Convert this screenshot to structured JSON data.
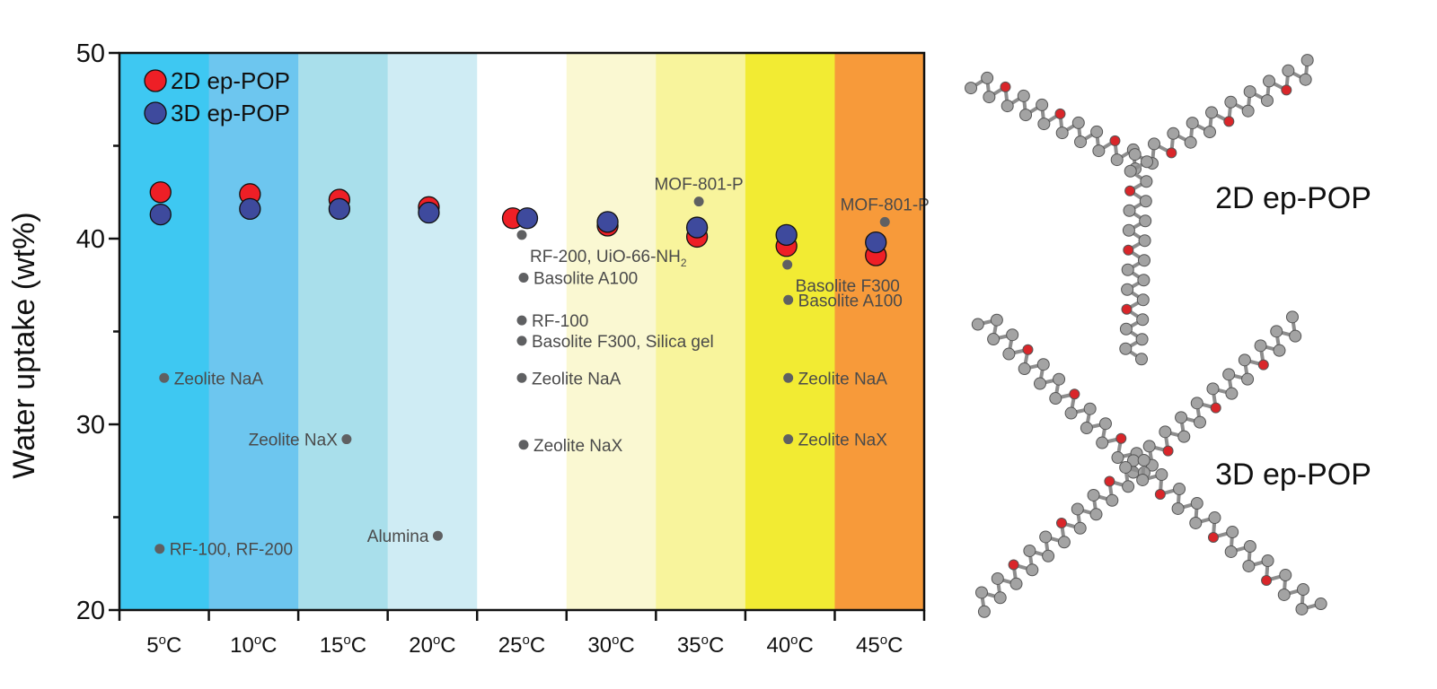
{
  "chart_data": {
    "type": "scatter",
    "ylabel": "Water uptake (wt%)",
    "ylim": [
      20,
      50
    ],
    "yticks": [
      20,
      30,
      40,
      50
    ],
    "categories": [
      "5",
      "10",
      "15",
      "20",
      "25",
      "30",
      "35",
      "40",
      "45"
    ],
    "category_unit": "oC",
    "band_colors": [
      "#3ec8f2",
      "#6dc6ef",
      "#a9dfeb",
      "#cfecf4",
      "#ffffff",
      "#faf8d2",
      "#f8f49c",
      "#f2eb33",
      "#f79a3a"
    ],
    "legend_position": "top-left",
    "grid": false,
    "series": [
      {
        "name": "2D ep-POP",
        "color": "#ee1f26",
        "values": [
          42.5,
          42.4,
          42.1,
          41.7,
          41.1,
          40.7,
          40.1,
          39.6,
          39.1
        ]
      },
      {
        "name": "3D ep-POP",
        "color": "#3e4a9d",
        "values": [
          41.3,
          41.6,
          41.6,
          41.4,
          41.1,
          40.9,
          40.6,
          40.2,
          39.8
        ]
      }
    ],
    "reference_points": [
      {
        "category": "5",
        "value": 32.5,
        "label": "Zeolite NaA"
      },
      {
        "category": "5",
        "value": 23.3,
        "label": "RF-100, RF-200"
      },
      {
        "category": "15",
        "value": 29.2,
        "label": "Zeolite NaX"
      },
      {
        "category": "20",
        "value": 24.0,
        "label": "Alumina"
      },
      {
        "category": "25",
        "value": 40.2,
        "label": "RF-200, UiO-66-NH",
        "label_sub": "2"
      },
      {
        "category": "25",
        "value": 37.9,
        "label": "Basolite A100"
      },
      {
        "category": "25",
        "value": 35.6,
        "label": "RF-100"
      },
      {
        "category": "25",
        "value": 34.5,
        "label": "Basolite F300, Silica gel"
      },
      {
        "category": "25",
        "value": 32.5,
        "label": "Zeolite NaA"
      },
      {
        "category": "25",
        "value": 28.9,
        "label": "Zeolite NaX"
      },
      {
        "category": "35",
        "value": 42.0,
        "label": "MOF-801-P"
      },
      {
        "category": "40",
        "value": 38.6,
        "label": "Basolite F300"
      },
      {
        "category": "40",
        "value": 36.7,
        "label": "Basolite A100"
      },
      {
        "category": "40",
        "value": 32.5,
        "label": "Zeolite NaA"
      },
      {
        "category": "40",
        "value": 29.2,
        "label": "Zeolite NaX"
      },
      {
        "category": "45",
        "value": 40.9,
        "label": "MOF-801-P"
      }
    ]
  },
  "structures": [
    {
      "label": "2D ep-POP",
      "icon": "ball-and-stick-molecule-icon"
    },
    {
      "label": "3D ep-POP",
      "icon": "ball-and-stick-molecule-icon"
    }
  ]
}
